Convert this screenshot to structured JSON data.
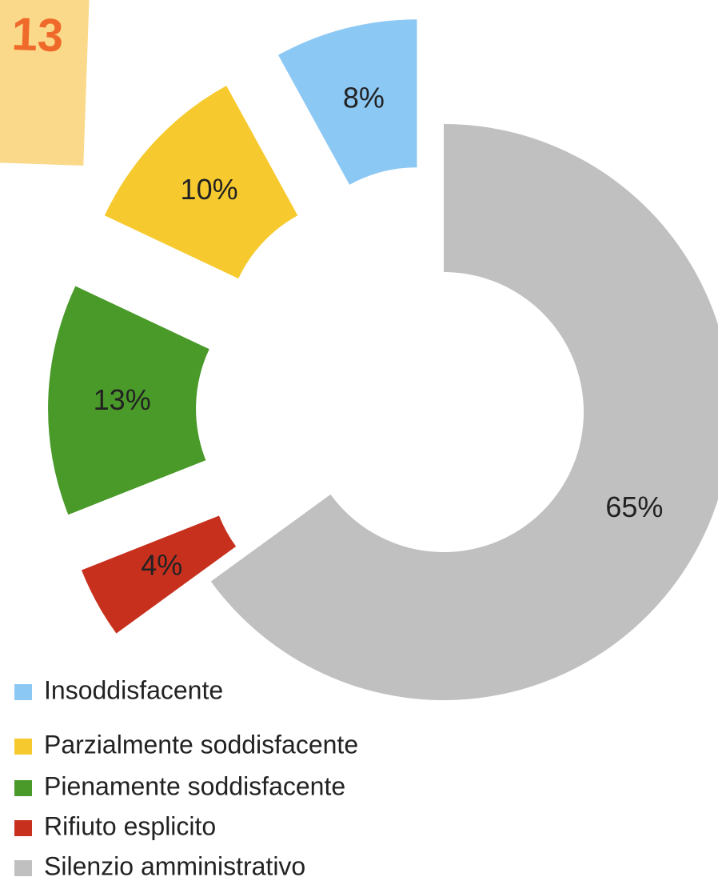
{
  "badge": "13",
  "chart_data": {
    "type": "donut",
    "categories": [
      "Insoddisfacente",
      "Parzialmente soddisfacente",
      "Pienamente soddisfacente",
      "Rifiuto esplicito",
      "Silenzio amministrativo"
    ],
    "values": [
      8,
      10,
      13,
      4,
      65
    ],
    "value_labels": [
      "8%",
      "10%",
      "13%",
      "4%",
      "65%"
    ],
    "colors": [
      "#8cc8f4",
      "#f6ca2e",
      "#4a9a2a",
      "#c8301e",
      "#c0c0c0"
    ],
    "legend": "bottom-left"
  }
}
